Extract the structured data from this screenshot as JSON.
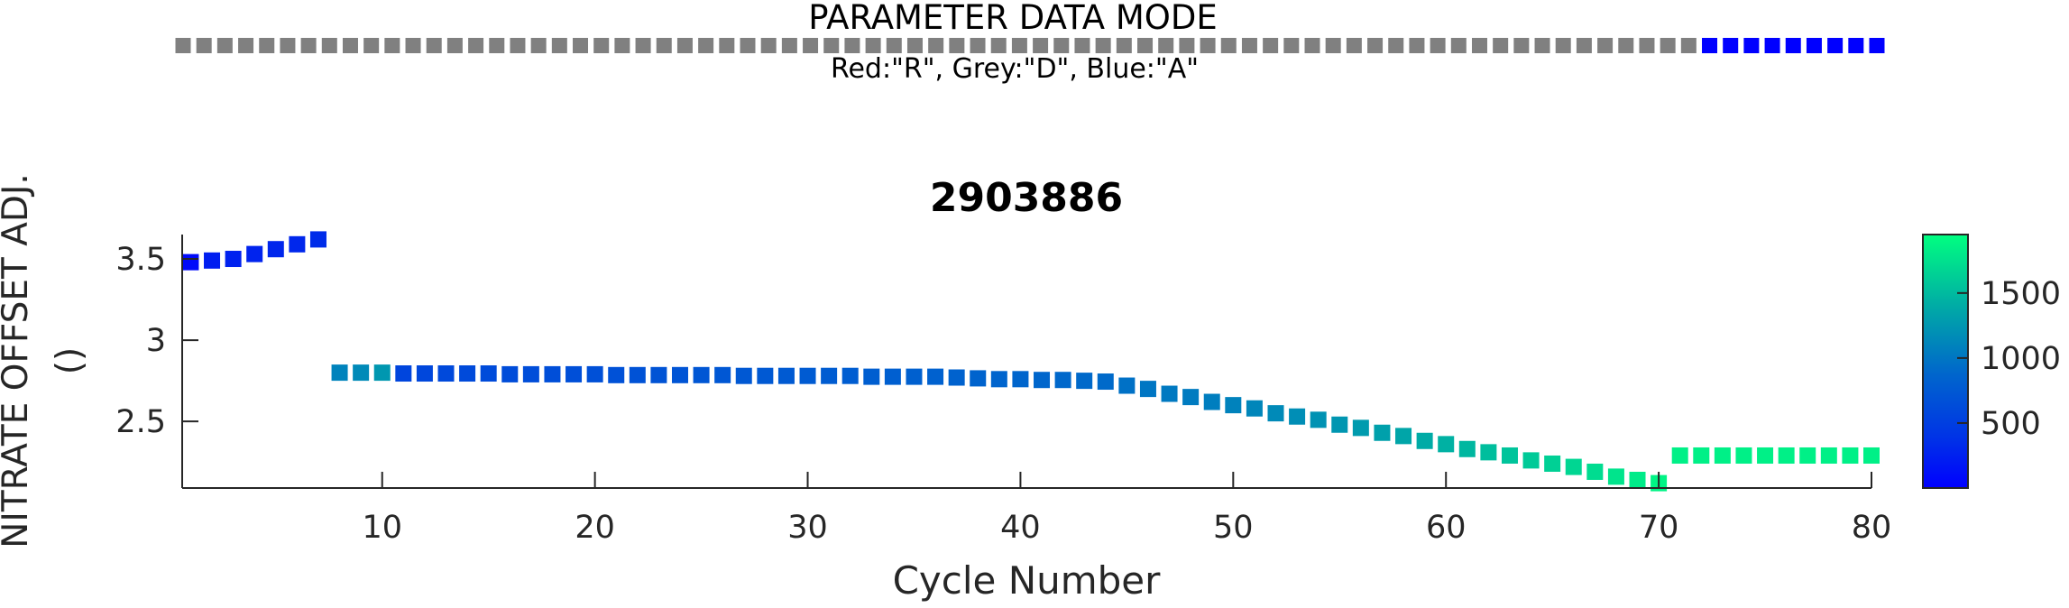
{
  "chart_data": [
    {
      "type": "strip",
      "title": "PARAMETER DATA MODE",
      "subtitle": "Red:\"R\", Grey:\"D\", Blue:\"A\"",
      "legend": {
        "R": "#ff0000",
        "D": "#808080",
        "A": "#0000ff"
      },
      "cycles_start": 1,
      "modes": "DDDDDDDDDDDDDDDDDDDDDDDDDDDDDDDDDDDDDDDDDDDDDDDDDDDDDDDDDDDDDDDDDDDDDDDDDAAAAAAAAA"
    },
    {
      "type": "scatter",
      "title": "2903886",
      "xlabel": "Cycle Number",
      "ylabel": "NITRATE OFFSET ADJ.",
      "ylabel_unit": "()",
      "xlim": [
        0.6,
        80
      ],
      "ylim": [
        2.09,
        3.65
      ],
      "xticks": [
        10,
        20,
        30,
        40,
        50,
        60,
        70,
        80
      ],
      "yticks": [
        2.5,
        3,
        3.5
      ],
      "ytick_labels": [
        "2.5",
        "3",
        "3.5"
      ],
      "colorbar": {
        "ticks": [
          500,
          1000,
          1500
        ],
        "range": [
          0,
          1950
        ],
        "colors": [
          "#0000ff",
          "#00ff80"
        ]
      },
      "x": [
        1,
        2,
        3,
        4,
        5,
        6,
        7,
        8,
        9,
        10,
        11,
        12,
        13,
        14,
        15,
        16,
        17,
        18,
        19,
        20,
        21,
        22,
        23,
        24,
        25,
        26,
        27,
        28,
        29,
        30,
        31,
        32,
        33,
        34,
        35,
        36,
        37,
        38,
        39,
        40,
        41,
        42,
        43,
        44,
        45,
        46,
        47,
        48,
        49,
        50,
        51,
        52,
        53,
        54,
        55,
        56,
        57,
        58,
        59,
        60,
        61,
        62,
        63,
        64,
        65,
        66,
        67,
        68,
        69,
        70,
        71,
        72,
        73,
        74,
        75,
        76,
        77,
        78,
        79,
        80
      ],
      "y": [
        3.48,
        3.49,
        3.5,
        3.53,
        3.56,
        3.59,
        3.62,
        2.8,
        2.8,
        2.8,
        2.795,
        2.795,
        2.795,
        2.795,
        2.795,
        2.79,
        2.79,
        2.79,
        2.79,
        2.79,
        2.785,
        2.785,
        2.785,
        2.785,
        2.785,
        2.785,
        2.78,
        2.78,
        2.78,
        2.78,
        2.78,
        2.78,
        2.775,
        2.775,
        2.775,
        2.775,
        2.77,
        2.765,
        2.76,
        2.76,
        2.755,
        2.755,
        2.75,
        2.745,
        2.72,
        2.7,
        2.67,
        2.65,
        2.62,
        2.6,
        2.58,
        2.55,
        2.53,
        2.51,
        2.48,
        2.46,
        2.43,
        2.41,
        2.38,
        2.36,
        2.33,
        2.31,
        2.29,
        2.26,
        2.24,
        2.22,
        2.19,
        2.16,
        2.14,
        2.12,
        2.29,
        2.29,
        2.29,
        2.29,
        2.29,
        2.29,
        2.29,
        2.29,
        2.29,
        2.29
      ],
      "c": [
        80,
        230,
        250,
        270,
        290,
        300,
        340,
        1100,
        1150,
        1250,
        560,
        580,
        600,
        610,
        620,
        630,
        640,
        650,
        660,
        670,
        680,
        690,
        700,
        710,
        720,
        730,
        740,
        750,
        760,
        770,
        780,
        790,
        800,
        810,
        820,
        830,
        840,
        850,
        860,
        870,
        880,
        890,
        900,
        910,
        960,
        1000,
        1020,
        1040,
        1060,
        1090,
        1120,
        1150,
        1180,
        1210,
        1240,
        1280,
        1320,
        1360,
        1400,
        1440,
        1480,
        1520,
        1560,
        1600,
        1640,
        1680,
        1720,
        1770,
        1820,
        1880,
        1850,
        1850,
        1850,
        1850,
        1850,
        1850,
        1850,
        1850,
        1850,
        1850
      ]
    }
  ]
}
